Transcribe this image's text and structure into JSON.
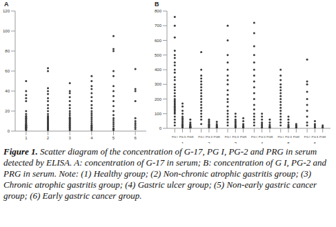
{
  "caption": {
    "label": "Figure 1.",
    "text": "Scatter diagram of the concentration of G-17, PG I, PG-2 and PRG in serum detected by ELISA. A: concentration of G-17 in serum; B: concentration of G I, PG-2 and PRG in serum. Note: (1) Healthy group; (2) Non-chronic atrophic gastritis group; (3) Chronic atrophic gastritis group; (4) Gastric ulcer group; (5) Non-early gastric cancer group; (6) Early gastric cancer group."
  },
  "chart_data": [
    {
      "type": "scatter",
      "title": "A",
      "categories": [
        "1",
        "2",
        "3",
        "4",
        "5",
        "6"
      ],
      "values": [
        [
          1,
          2,
          2,
          3,
          3,
          4,
          4,
          5,
          5,
          6,
          6,
          7,
          8,
          9,
          10,
          11,
          12,
          13,
          14,
          15,
          17,
          20,
          30,
          33,
          36,
          40,
          50
        ],
        [
          1,
          2,
          3,
          3,
          4,
          5,
          6,
          7,
          8,
          9,
          10,
          11,
          12,
          13,
          14,
          15,
          17,
          20,
          23,
          26,
          30,
          33,
          37,
          40,
          43,
          60,
          63
        ],
        [
          1,
          2,
          3,
          4,
          5,
          6,
          7,
          8,
          9,
          10,
          11,
          12,
          13,
          14,
          16,
          18,
          20,
          23,
          26,
          30,
          34,
          38,
          40,
          48
        ],
        [
          1,
          2,
          3,
          4,
          5,
          6,
          8,
          10,
          12,
          14,
          16,
          18,
          20,
          23,
          26,
          30,
          34,
          38,
          42,
          45,
          50,
          55
        ],
        [
          1,
          2,
          3,
          5,
          7,
          9,
          11,
          13,
          16,
          20,
          25,
          30,
          35,
          40,
          45,
          55,
          60,
          80,
          82,
          95
        ],
        [
          2,
          4,
          6,
          8,
          10,
          13,
          30,
          40,
          42,
          62
        ]
      ],
      "color": "#3a3a3a",
      "marker": "circle",
      "ylim": [
        0,
        120
      ],
      "yticks": [
        0,
        20,
        40,
        60,
        80,
        100,
        120
      ],
      "grid": false
    },
    {
      "type": "scatter",
      "title": "B",
      "groups": [
        "1",
        "2",
        "3",
        "4",
        "5",
        "6"
      ],
      "categories": [
        "PG I",
        "PG II",
        "PGR",
        "PG I",
        "PG II",
        "PGR",
        "PG I",
        "PG II",
        "PGR",
        "PG I",
        "PG II",
        "PGR",
        "PG I",
        "PG II",
        "PGR",
        "PG I",
        "PG II",
        "PGR"
      ],
      "values": [
        [
          20,
          40,
          60,
          80,
          100,
          110,
          120,
          130,
          140,
          150,
          160,
          170,
          180,
          190,
          200,
          220,
          240,
          260,
          280,
          300,
          330,
          350,
          380,
          400,
          430,
          450,
          480,
          500,
          530,
          620,
          700,
          760
        ],
        [
          5,
          10,
          15,
          20,
          25,
          30,
          40,
          50,
          60,
          70,
          80,
          100,
          120,
          150,
          170
        ],
        [
          2,
          4,
          6,
          8,
          10,
          12,
          15,
          20,
          25,
          30,
          40,
          60
        ],
        [
          30,
          60,
          80,
          100,
          120,
          140,
          160,
          180,
          200,
          220,
          240,
          260,
          280,
          300,
          320,
          340,
          360,
          400,
          520
        ],
        [
          5,
          10,
          15,
          20,
          25,
          30,
          40,
          50,
          60
        ],
        [
          3,
          6,
          10,
          15,
          20,
          30,
          45
        ],
        [
          20,
          40,
          60,
          80,
          100,
          120,
          150,
          180,
          200,
          230,
          260,
          300,
          330,
          360,
          400,
          450,
          500,
          600,
          700
        ],
        [
          5,
          10,
          15,
          20,
          30,
          40,
          50,
          60,
          80,
          100
        ],
        [
          2,
          5,
          8,
          12,
          20,
          30,
          50,
          70
        ],
        [
          20,
          40,
          60,
          80,
          100,
          130,
          160,
          200,
          240,
          280,
          320,
          360,
          400,
          450,
          500,
          560,
          650,
          720
        ],
        [
          5,
          10,
          20,
          30,
          40,
          60,
          80,
          100
        ],
        [
          3,
          6,
          10,
          15,
          25,
          40,
          60
        ],
        [
          20,
          40,
          60,
          80,
          100,
          120,
          140,
          160,
          180,
          200,
          220,
          240,
          260,
          280,
          300,
          330,
          360,
          400
        ],
        [
          5,
          10,
          15,
          25,
          40,
          60,
          80
        ],
        [
          2,
          4,
          6,
          10,
          15,
          20,
          30
        ],
        [
          20,
          40,
          80,
          120,
          160,
          200,
          250,
          300,
          320,
          470
        ],
        [
          5,
          10,
          20,
          30,
          50
        ],
        [
          2,
          5,
          10,
          20
        ]
      ],
      "color": "#3a3a3a",
      "marker": "circle",
      "ylim": [
        0,
        800
      ],
      "yticks": [
        0,
        100,
        200,
        300,
        400,
        500,
        600,
        700,
        800
      ],
      "grid": false
    }
  ]
}
